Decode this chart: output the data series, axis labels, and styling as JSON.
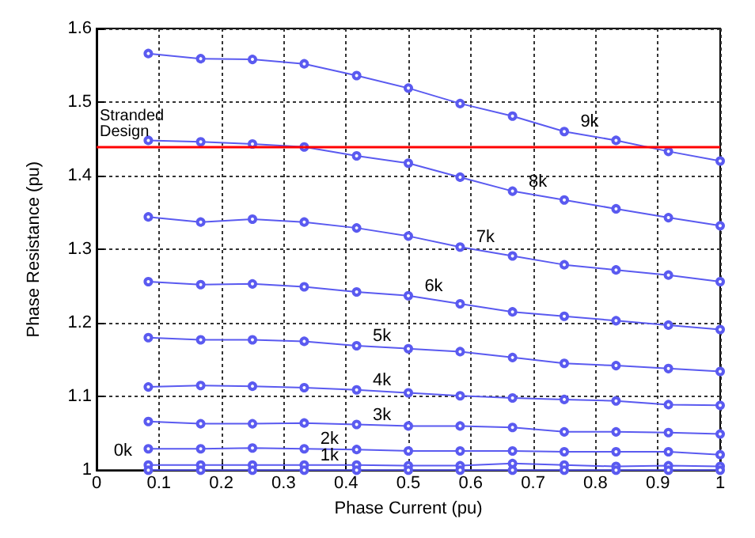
{
  "chart_data": {
    "type": "line",
    "xlabel": "Phase Current (pu)",
    "ylabel": "Phase Resistance (pu)",
    "x": [
      0.083,
      0.167,
      0.25,
      0.333,
      0.417,
      0.5,
      0.583,
      0.667,
      0.75,
      0.833,
      0.917,
      1.0
    ],
    "series": [
      {
        "color": "#5a5af0",
        "values": [
          1.566,
          1.559,
          1.558,
          1.552,
          1.536,
          1.519,
          1.498,
          1.481,
          1.46,
          1.448,
          1.433,
          1.42
        ]
      },
      {
        "color": "#5a5af0",
        "values": [
          1.448,
          1.446,
          1.443,
          1.439,
          1.427,
          1.417,
          1.398,
          1.379,
          1.367,
          1.355,
          1.343,
          1.332
        ]
      },
      {
        "color": "#5a5af0",
        "values": [
          1.344,
          1.337,
          1.341,
          1.337,
          1.329,
          1.318,
          1.303,
          1.291,
          1.279,
          1.272,
          1.265,
          1.256
        ]
      },
      {
        "color": "#5a5af0",
        "values": [
          1.256,
          1.252,
          1.253,
          1.249,
          1.242,
          1.237,
          1.226,
          1.215,
          1.209,
          1.203,
          1.197,
          1.191
        ]
      },
      {
        "color": "#5a5af0",
        "values": [
          1.18,
          1.177,
          1.177,
          1.175,
          1.169,
          1.165,
          1.161,
          1.153,
          1.145,
          1.142,
          1.138,
          1.134
        ]
      },
      {
        "color": "#5a5af0",
        "values": [
          1.113,
          1.115,
          1.114,
          1.112,
          1.109,
          1.105,
          1.101,
          1.098,
          1.096,
          1.094,
          1.089,
          1.088
        ]
      },
      {
        "color": "#5a5af0",
        "values": [
          1.066,
          1.063,
          1.063,
          1.064,
          1.062,
          1.06,
          1.06,
          1.058,
          1.052,
          1.052,
          1.051,
          1.049
        ]
      },
      {
        "color": "#5a5af0",
        "values": [
          1.029,
          1.029,
          1.03,
          1.029,
          1.028,
          1.026,
          1.026,
          1.026,
          1.025,
          1.025,
          1.025,
          1.021
        ]
      },
      {
        "color": "#5a5af0",
        "values": [
          1.007,
          1.007,
          1.007,
          1.007,
          1.007,
          1.006,
          1.006,
          1.009,
          1.007,
          1.005,
          1.006,
          1.005
        ]
      },
      {
        "color": "#5a5af0",
        "values": [
          1.0,
          1.0,
          1.0,
          1.0,
          1.0,
          1.0,
          1.0,
          1.0,
          1.0,
          1.0,
          1.0,
          1.0
        ]
      }
    ],
    "annotations": [
      {
        "text": "9k",
        "x": 0.75,
        "y": 1.46
      },
      {
        "text": "8k",
        "x": 0.667,
        "y": 1.379
      },
      {
        "text": "7k",
        "x": 0.583,
        "y": 1.303
      },
      {
        "text": "6k",
        "x": 0.5,
        "y": 1.237
      },
      {
        "text": "5k",
        "x": 0.417,
        "y": 1.169
      },
      {
        "text": "4k",
        "x": 0.417,
        "y": 1.109
      },
      {
        "text": "3k",
        "x": 0.417,
        "y": 1.062
      },
      {
        "text": "2k",
        "x": 0.333,
        "y": 1.029
      },
      {
        "text": "1k",
        "x": 0.333,
        "y": 1.007
      },
      {
        "text": "0k",
        "x": 0.083,
        "y": 1.0
      }
    ],
    "ref_lines": [
      {
        "axis": "y",
        "value": 1.439,
        "label": "Stranded Design",
        "color": "#ff0000"
      }
    ],
    "xlim": [
      0,
      1
    ],
    "xticks": [
      0,
      0.1,
      0.2,
      0.3,
      0.4,
      0.5,
      0.6,
      0.7,
      0.8,
      0.9,
      1
    ],
    "ylim": [
      1,
      1.6
    ],
    "yticks": [
      1,
      1.1,
      1.2,
      1.3,
      1.4,
      1.5,
      1.6
    ],
    "grid": true,
    "marker": "circle",
    "line_style": "solid"
  }
}
